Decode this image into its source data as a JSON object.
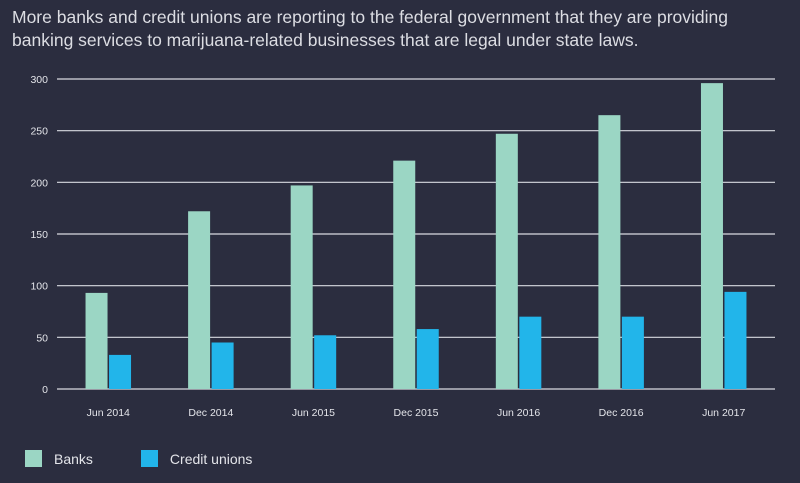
{
  "headline": "More banks and credit unions are reporting to the federal government that they are providing banking services to marijuana-related businesses that are legal under state laws.",
  "chart_data": {
    "type": "bar",
    "categories": [
      "Jun 2014",
      "Dec 2014",
      "Jun 2015",
      "Dec 2015",
      "Jun 2016",
      "Dec 2016",
      "Jun 2017"
    ],
    "series": [
      {
        "name": "Banks",
        "color": "#9bd6c4",
        "values": [
          93,
          172,
          197,
          221,
          247,
          265,
          296
        ]
      },
      {
        "name": "Credit unions",
        "color": "#22b5ea",
        "values": [
          33,
          45,
          52,
          58,
          70,
          70,
          94
        ]
      }
    ],
    "y_ticks": [
      0,
      50,
      100,
      150,
      200,
      250,
      300
    ],
    "ylim": [
      0,
      300
    ],
    "grid": true,
    "legend_position": "bottom-left"
  },
  "legend": [
    {
      "label": "Banks",
      "color": "#9bd6c4"
    },
    {
      "label": "Credit unions",
      "color": "#22b5ea"
    }
  ]
}
